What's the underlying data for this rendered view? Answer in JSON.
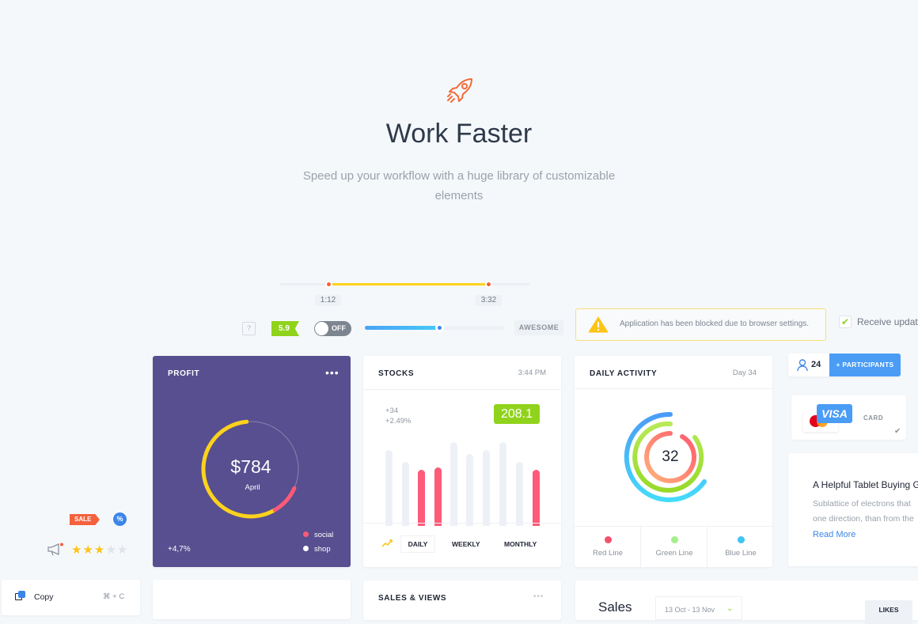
{
  "hero": {
    "icon": "rocket-icon",
    "title": "Work Faster",
    "subtitle_line1": "Speed up your workflow with a huge library of customizable",
    "subtitle_line2": "elements"
  },
  "range": {
    "start_label": "1:12",
    "end_label": "3:32",
    "start_fraction": 0.19,
    "end_fraction": 0.83
  },
  "controls": {
    "help": "?",
    "rating_badge": "5.9",
    "toggle_label": "OFF",
    "toggle_on": false,
    "slider_fraction": 0.53,
    "slider_label": "AWESOME"
  },
  "alert": {
    "text": "Application has been blocked  due to browser settings."
  },
  "checkbox": {
    "label": "Receive updates",
    "checked": true
  },
  "participants": {
    "count": "24",
    "button": "+ PARTICIPANTS"
  },
  "payment": {
    "visa": "VISA",
    "label": "CARD"
  },
  "article": {
    "title": "A Helpful Tablet Buying Guide",
    "line1": "Sublattice of electrons that",
    "line2": "one direction, than from the",
    "link": "Read More"
  },
  "profit": {
    "title": "PROFIT",
    "amount": "$784",
    "month": "April",
    "change": "+4,7%",
    "legend": [
      {
        "label": "social",
        "color": "#ff5a78"
      },
      {
        "label": "shop",
        "color": "#ffffff"
      }
    ],
    "arc_yellow_fraction": 0.57,
    "arc_red_fraction": 0.1
  },
  "stocks": {
    "title": "STOCKS",
    "time": "3:44 PM",
    "change_abs": "+34",
    "change_pct": "+2.49%",
    "price": "208.1",
    "tabs": [
      "DAILY",
      "WEEKLY",
      "MONTHLY"
    ],
    "active_tab": "DAILY"
  },
  "chart_data": {
    "type": "bar",
    "values": [
      92,
      77,
      67,
      70,
      102,
      87,
      92,
      102,
      77,
      67
    ],
    "highlighted": [
      false,
      false,
      true,
      true,
      false,
      false,
      false,
      false,
      false,
      true
    ],
    "colors": {
      "normal": "#edf1f7",
      "highlight": "#ff5a78"
    }
  },
  "activity": {
    "title": "DAILY ACTIVITY",
    "day": "Day 34",
    "value": "32",
    "legend": [
      {
        "label": "Red Line",
        "color": "#f2506e"
      },
      {
        "label": "Green Line",
        "color": "#a6ef8c"
      },
      {
        "label": "Blue Line",
        "color": "#3fc5f5"
      }
    ]
  },
  "promo": {
    "sale": "SALE",
    "percent": "%",
    "rating": 3,
    "rating_max": 5
  },
  "menu": {
    "copy": "Copy",
    "shortcut": "⌘ + C"
  },
  "sales_views": {
    "title": "SALES & VIEWS"
  },
  "sales": {
    "title": "Sales",
    "range": "13 Oct - 13 Nov",
    "likes": "LIKES"
  }
}
